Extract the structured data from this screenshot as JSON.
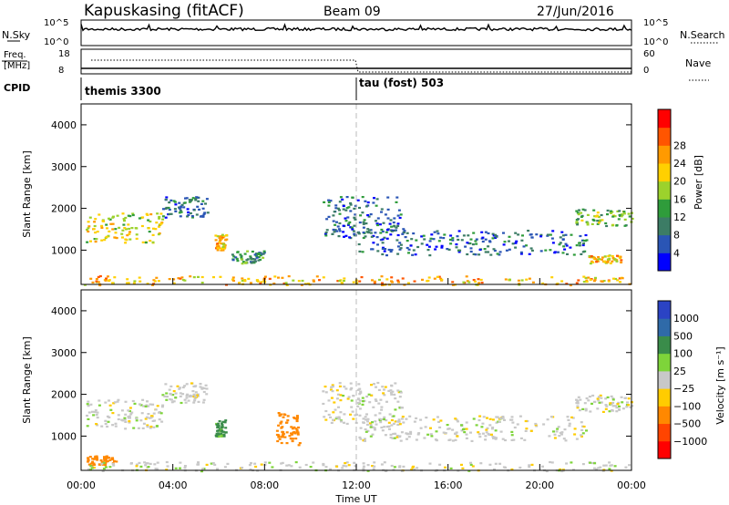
{
  "header": {
    "title": "Kapuskasing (fitACF)",
    "beam": "Beam 09",
    "date": "27/Jun/2016"
  },
  "strip1": {
    "left_label": "N.Sky",
    "right_label": "N.Search",
    "left_ticks": [
      "10^5",
      "10^0"
    ],
    "right_ticks": [
      "10^5",
      "10^0"
    ]
  },
  "strip2": {
    "left_label_1": "Freq.",
    "left_label_2": "[MHz]",
    "right_label": "Nave",
    "left_ticks": [
      "18",
      "8"
    ],
    "right_ticks": [
      "60",
      "0"
    ]
  },
  "cpid": {
    "label": "CPID",
    "mode1": "themis 3300",
    "mode2": "tau (fost) 503"
  },
  "xaxis": {
    "label": "Time UT",
    "ticks": [
      "00:00",
      "04:00",
      "08:00",
      "12:00",
      "16:00",
      "20:00",
      "00:00"
    ]
  },
  "panels": {
    "ylabel": "Slant Range [km]",
    "yticks": [
      "1000",
      "2000",
      "3000",
      "4000"
    ]
  },
  "power_bar": {
    "label": "Power [dB]",
    "ticks": [
      "4",
      "8",
      "12",
      "16",
      "20",
      "24",
      "28"
    ],
    "colors": [
      "#0000ff",
      "#2a55b5",
      "#3c7c65",
      "#2f9c3b",
      "#9cd22c",
      "#ffd000",
      "#ff9a00",
      "#ff5500",
      "#ff0000"
    ]
  },
  "velocity_bar": {
    "label": "Velocity [m s⁻¹]",
    "ticks": [
      "1000",
      "500",
      "100",
      "25",
      "−25",
      "−100",
      "−500",
      "−1000"
    ],
    "colors": [
      "#2b43c4",
      "#2f6aa8",
      "#3a8c4a",
      "#7ed43a",
      "#c8c8c8",
      "#ffcc00",
      "#ff8800",
      "#ff4400",
      "#ff0000"
    ]
  },
  "chart_data": [
    {
      "type": "heatmap",
      "title": "Power",
      "xlabel": "Time UT",
      "ylabel": "Slant Range [km]",
      "xlim": [
        "00:00",
        "24:00"
      ],
      "ylim": [
        180,
        4500
      ],
      "colorbar": "Power [dB]",
      "regions": [
        {
          "x": [
            0.2,
            3.5
          ],
          "y": [
            1200,
            1900
          ],
          "value": 20
        },
        {
          "x": [
            3.5,
            5.5
          ],
          "y": [
            1800,
            2300
          ],
          "value": 8
        },
        {
          "x": [
            5.8,
            6.3
          ],
          "y": [
            1000,
            1400
          ],
          "value": 24
        },
        {
          "x": [
            6.5,
            8.0
          ],
          "y": [
            700,
            1000
          ],
          "value": 12
        },
        {
          "x": [
            10.5,
            14.0
          ],
          "y": [
            1300,
            2300
          ],
          "value": 8
        },
        {
          "x": [
            12.0,
            22.0
          ],
          "y": [
            900,
            1500
          ],
          "value": 8
        },
        {
          "x": [
            21.5,
            24.0
          ],
          "y": [
            1600,
            2000
          ],
          "value": 16
        },
        {
          "x": [
            22.0,
            23.5
          ],
          "y": [
            700,
            900
          ],
          "value": 24
        },
        {
          "x": [
            0.0,
            24.0
          ],
          "y": [
            180,
            400
          ],
          "value": 24
        }
      ]
    },
    {
      "type": "heatmap",
      "title": "Velocity",
      "xlabel": "Time UT",
      "ylabel": "Slant Range [km]",
      "xlim": [
        "00:00",
        "24:00"
      ],
      "ylim": [
        180,
        4500
      ],
      "colorbar": "Velocity [m s⁻¹]",
      "regions": [
        {
          "x": [
            0.2,
            3.5
          ],
          "y": [
            1200,
            1900
          ],
          "value": 0
        },
        {
          "x": [
            3.5,
            5.5
          ],
          "y": [
            1800,
            2300
          ],
          "value": 0
        },
        {
          "x": [
            0.2,
            1.5
          ],
          "y": [
            300,
            550
          ],
          "value": -300
        },
        {
          "x": [
            5.8,
            6.3
          ],
          "y": [
            1000,
            1400
          ],
          "value": 120
        },
        {
          "x": [
            8.5,
            9.5
          ],
          "y": [
            800,
            1600
          ],
          "value": -200
        },
        {
          "x": [
            10.5,
            14.0
          ],
          "y": [
            1300,
            2300
          ],
          "value": 0
        },
        {
          "x": [
            12.0,
            22.0
          ],
          "y": [
            900,
            1500
          ],
          "value": 0
        },
        {
          "x": [
            21.5,
            24.0
          ],
          "y": [
            1600,
            2000
          ],
          "value": 0
        },
        {
          "x": [
            0.0,
            24.0
          ],
          "y": [
            180,
            400
          ],
          "value": 0
        }
      ]
    }
  ]
}
